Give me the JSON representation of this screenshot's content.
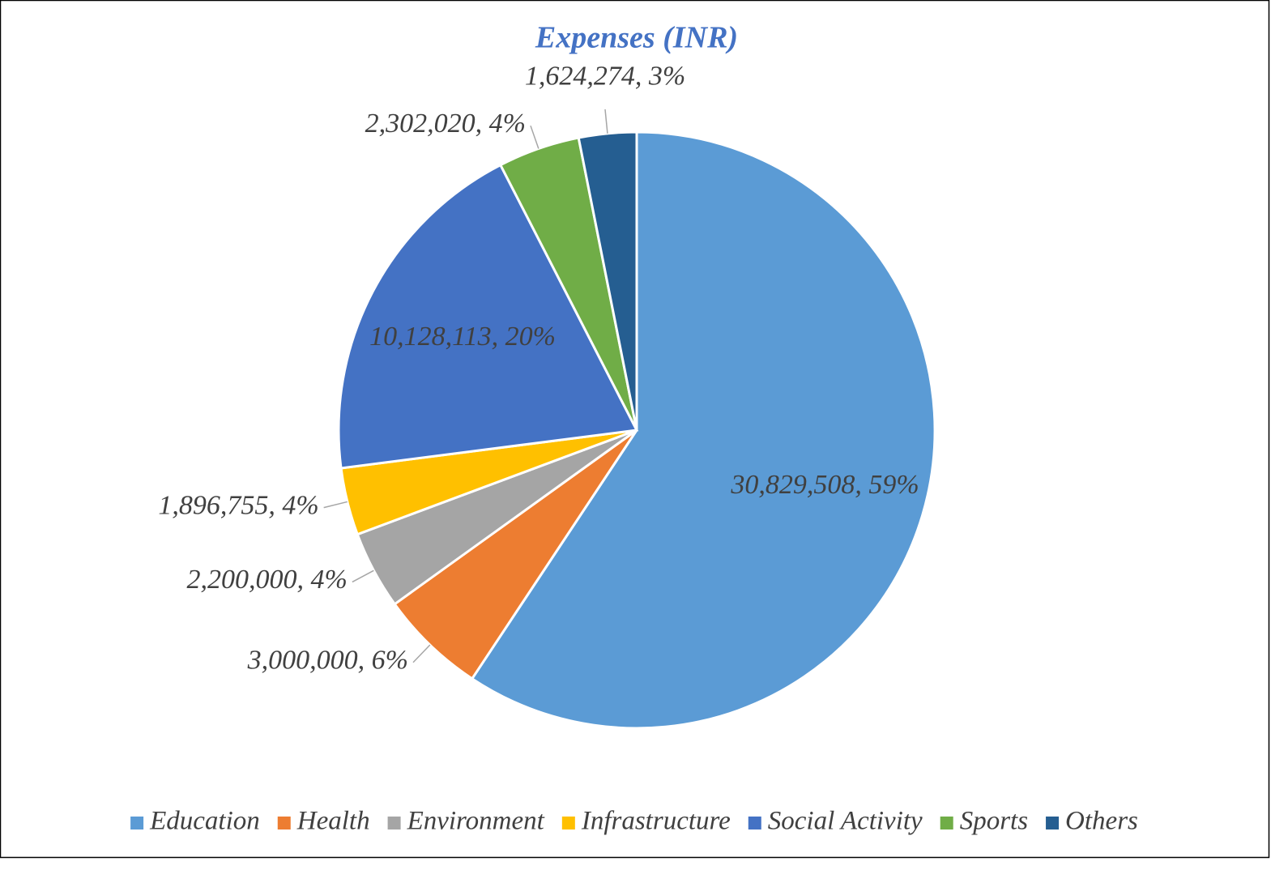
{
  "chart_data": {
    "type": "pie",
    "title": "Expenses (INR)",
    "categories": [
      "Education",
      "Health",
      "Environment",
      "Infrastructure",
      "Social Activity",
      "Sports",
      "Others"
    ],
    "values": [
      30829508,
      3000000,
      2200000,
      1896755,
      10128113,
      2302020,
      1624274
    ],
    "value_labels": [
      "30,829,508, 59%",
      "3,000,000, 6%",
      "2,200,000, 4%",
      "1,896,755, 4%",
      "10,128,113, 20%",
      "2,302,020, 4%",
      "1,624,274, 3%"
    ],
    "colors": [
      "#5b9bd5",
      "#ed7d31",
      "#a5a5a5",
      "#ffc000",
      "#4472c4",
      "#70ad47",
      "#255e91"
    ],
    "legend": "bottom"
  }
}
